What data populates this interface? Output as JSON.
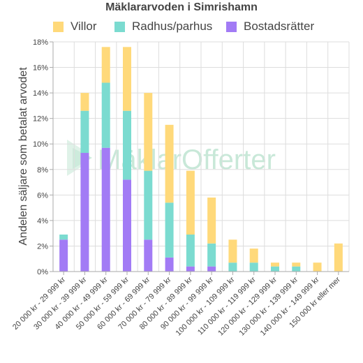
{
  "chart_data": {
    "type": "bar",
    "stacked": true,
    "title": "Mäklararvoden i Simrishamn",
    "ylabel": "Andelen säljare som betalat arvodet",
    "xlabel": "",
    "ylim": [
      0,
      18
    ],
    "yticks": [
      "0%",
      "2%",
      "4%",
      "6%",
      "8%",
      "10%",
      "12%",
      "14%",
      "16%",
      "18%"
    ],
    "ytick_values": [
      0,
      2,
      4,
      6,
      8,
      10,
      12,
      14,
      16,
      18
    ],
    "grid": true,
    "legend_position": "top",
    "categories": [
      "20 000 kr - 29 999 kr",
      "30 000 kr - 39 999 kr",
      "40 000 kr - 49 999 kr",
      "50 000 kr - 59 999 kr",
      "60 000 kr - 69 999 kr",
      "70 000 kr - 79 999 kr",
      "80 000 kr - 89 999 kr",
      "90 000 kr - 99 999 kr",
      "100 000 kr - 109 999 kr",
      "110 000 kr - 119 999 kr",
      "120 000 kr - 129 999 kr",
      "130 000 kr - 139 999 kr",
      "140 000 kr - 149 999 kr",
      "150 000 kr eller mer"
    ],
    "series": [
      {
        "name": "Bostadsrätter",
        "color": "#a27bf5",
        "values": [
          2.5,
          9.3,
          9.7,
          7.2,
          2.5,
          1.1,
          0.4,
          0.4,
          0,
          0,
          0,
          0,
          0,
          0
        ]
      },
      {
        "name": "Radhus/parhus",
        "color": "#7bdbd0",
        "values": [
          0.4,
          3.3,
          5.1,
          5.4,
          5.4,
          4.3,
          2.5,
          1.8,
          0.7,
          0.7,
          0.4,
          0.4,
          0,
          0
        ]
      },
      {
        "name": "Villor",
        "color": "#ffd97a",
        "values": [
          0,
          1.4,
          2.8,
          5.0,
          6.1,
          6.1,
          5.0,
          3.6,
          1.8,
          1.1,
          0.3,
          0.3,
          0.7,
          2.2
        ]
      }
    ],
    "legend_order": [
      "Villor",
      "Radhus/parhus",
      "Bostadsrätter"
    ]
  },
  "watermark": {
    "text": "MäklarOfferter"
  },
  "colors": {
    "grid": "#dddddd",
    "axis": "#aaaaaa",
    "text": "#444444"
  }
}
